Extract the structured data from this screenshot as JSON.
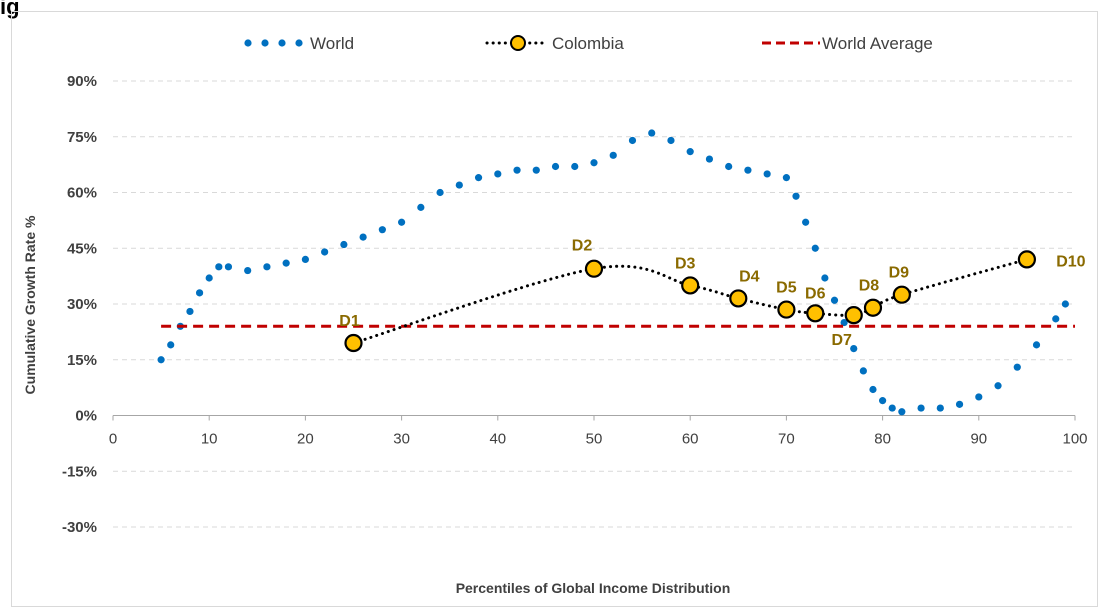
{
  "heading": "ig",
  "chart_data": {
    "type": "line",
    "xlabel": "Percentiles of Global Income Distribution",
    "ylabel": "Cumulative Growth Rate %",
    "xlim": [
      0,
      100
    ],
    "ylim": [
      -0.3,
      0.9
    ],
    "xticks": [
      "0",
      "10",
      "20",
      "30",
      "40",
      "50",
      "60",
      "70",
      "80",
      "90",
      "100"
    ],
    "yticks": [
      "-30%",
      "-15%",
      "0%",
      "15%",
      "30%",
      "45%",
      "60%",
      "75%",
      "90%"
    ],
    "gridlines": "horizontal dashed",
    "legend_position": "top",
    "series": [
      {
        "name": "World",
        "color": "#0070c0",
        "style": "dotted",
        "x": [
          5,
          6,
          7,
          8,
          9,
          10,
          11,
          12,
          14,
          16,
          18,
          20,
          22,
          24,
          26,
          28,
          30,
          32,
          34,
          36,
          38,
          40,
          42,
          44,
          46,
          48,
          50,
          52,
          54,
          56,
          58,
          60,
          62,
          64,
          66,
          68,
          70,
          71,
          72,
          73,
          74,
          75,
          76,
          77,
          78,
          79,
          80,
          81,
          82,
          84,
          86,
          88,
          90,
          92,
          94,
          96,
          98,
          99
        ],
        "y": [
          0.15,
          0.19,
          0.24,
          0.28,
          0.33,
          0.37,
          0.4,
          0.4,
          0.39,
          0.4,
          0.41,
          0.42,
          0.44,
          0.46,
          0.48,
          0.5,
          0.52,
          0.56,
          0.6,
          0.62,
          0.64,
          0.65,
          0.66,
          0.66,
          0.67,
          0.67,
          0.68,
          0.7,
          0.74,
          0.76,
          0.74,
          0.71,
          0.69,
          0.67,
          0.66,
          0.65,
          0.64,
          0.59,
          0.52,
          0.45,
          0.37,
          0.31,
          0.25,
          0.18,
          0.12,
          0.07,
          0.04,
          0.02,
          0.01,
          0.02,
          0.02,
          0.03,
          0.05,
          0.08,
          0.13,
          0.19,
          0.26,
          0.3
        ]
      },
      {
        "name": "Colombia",
        "color": "#000000",
        "marker_color": "#ffc000",
        "style": "dotted",
        "x": [
          25,
          50,
          60,
          65,
          70,
          73,
          77,
          79,
          82,
          95
        ],
        "y": [
          0.195,
          0.395,
          0.35,
          0.315,
          0.285,
          0.275,
          0.27,
          0.29,
          0.325,
          0.42
        ],
        "labels": [
          "D1",
          "D2",
          "D3",
          "D4",
          "D5",
          "D6",
          "D7",
          "D8",
          "D9",
          "D10"
        ]
      },
      {
        "name": "World Average",
        "color": "#c00000",
        "style": "dashed",
        "x": [
          5,
          100
        ],
        "y": [
          0.24,
          0.24
        ]
      }
    ]
  }
}
